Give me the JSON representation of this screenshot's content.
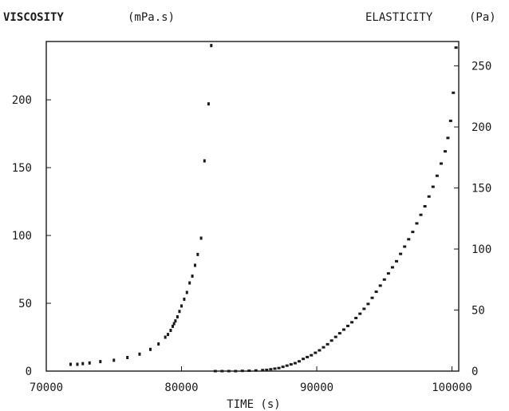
{
  "chart_data": {
    "type": "scatter",
    "title": "",
    "xlabel": "TIME (s)",
    "y_left_label": "VISCOSITY",
    "y_left_unit": "(mPa.s)",
    "y_right_label": "ELASTICITY",
    "y_right_unit": "(Pa)",
    "xlim": [
      70000,
      100500
    ],
    "ylim_left": [
      0,
      243
    ],
    "ylim_right": [
      0,
      270
    ],
    "x_ticks": [
      70000,
      80000,
      90000,
      100000
    ],
    "y_left_ticks": [
      0,
      50,
      100,
      150,
      200
    ],
    "y_right_ticks": [
      0,
      50,
      100,
      150,
      200,
      250
    ],
    "grid": false,
    "legend": "none",
    "colors": {
      "points": "#1a1a1a",
      "axes": "#1a1a1a",
      "background": "#ffffff"
    },
    "series": [
      {
        "axis": "left",
        "x": [
          71800,
          72300,
          72700,
          73200,
          74000,
          75000,
          76000,
          76900,
          77700,
          78300,
          78800,
          79000,
          79200,
          79350,
          79450,
          79550,
          79700,
          79850,
          80000,
          80200,
          80400,
          80600,
          80800,
          81000,
          81200,
          81450,
          81700,
          82000,
          82200
        ],
        "y": [
          5,
          5,
          5.5,
          6,
          7,
          8,
          10,
          12.5,
          16,
          20,
          25,
          27,
          30,
          33,
          35,
          37,
          40,
          44,
          48,
          53,
          58,
          65,
          70,
          78,
          86,
          98,
          155,
          197,
          240
        ]
      },
      {
        "axis": "right",
        "x": [
          82500,
          83000,
          83500,
          84000,
          84500,
          85000,
          85500,
          86000,
          86300,
          86600,
          86900,
          87200,
          87500,
          87800,
          88100,
          88400,
          88700,
          89000,
          89300,
          89600,
          89900,
          90200,
          90500,
          90800,
          91100,
          91400,
          91700,
          92000,
          92300,
          92600,
          92900,
          93200,
          93500,
          93800,
          94100,
          94400,
          94700,
          95000,
          95300,
          95600,
          95900,
          96200,
          96500,
          96800,
          97100,
          97400,
          97700,
          98000,
          98300,
          98600,
          98900,
          99200,
          99500,
          99700,
          99900,
          100100,
          100300
        ],
        "y": [
          0,
          0,
          0,
          0,
          0.2,
          0.3,
          0.5,
          0.8,
          1,
          1.5,
          2,
          2.5,
          3.5,
          4.5,
          5.5,
          6.5,
          8,
          10,
          11.5,
          13,
          15,
          17,
          19.5,
          22,
          25,
          28,
          31,
          34,
          37,
          40,
          43.5,
          47,
          51,
          55,
          60,
          65,
          70,
          75,
          80,
          85,
          90,
          96,
          102,
          108,
          114,
          121,
          128,
          135,
          143,
          151,
          160,
          170,
          180,
          191,
          205,
          228,
          265
        ]
      }
    ]
  }
}
